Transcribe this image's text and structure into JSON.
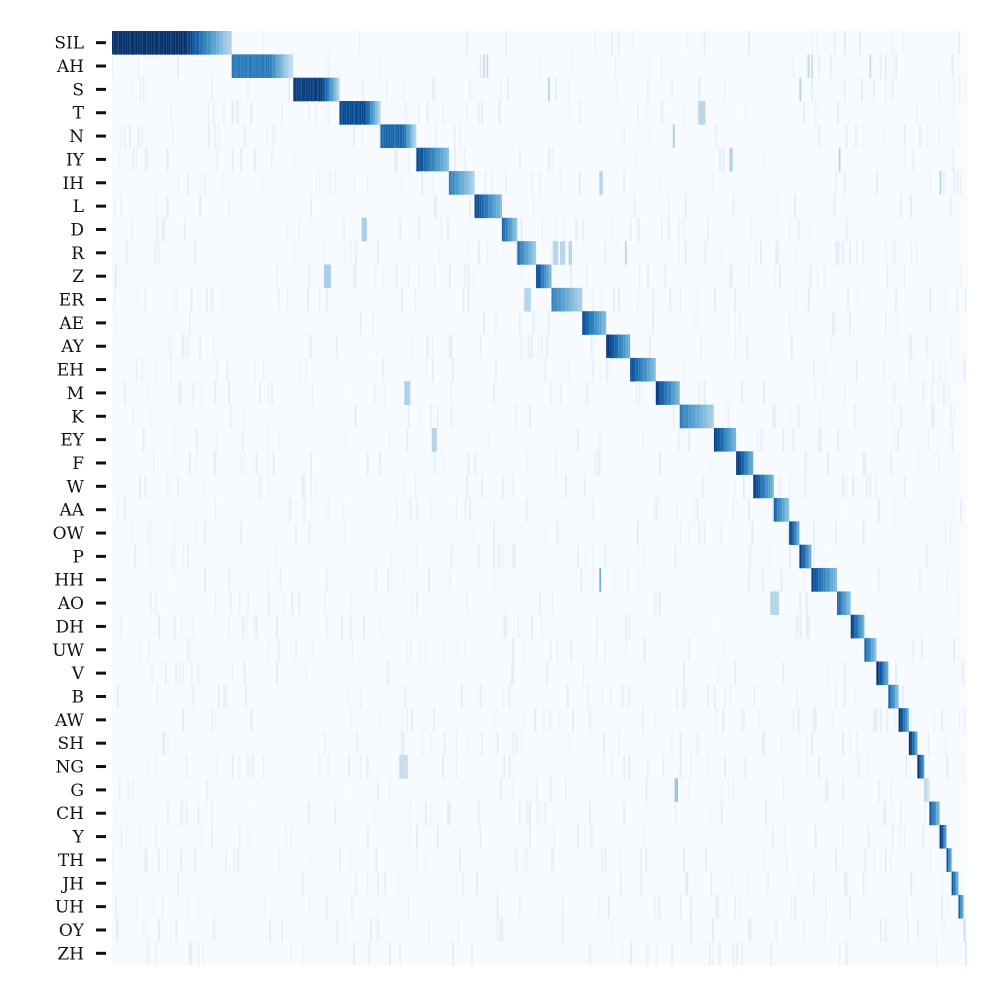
{
  "chart_data": {
    "type": "heatmap",
    "title": "",
    "xlabel": "",
    "ylabel": "",
    "colormap": "Blues",
    "colors": {
      "low": "#f7fbff",
      "mid": "#6baed6",
      "high": "#08306b"
    },
    "grid": false,
    "legend": "none",
    "x_tick_labels": [],
    "rows": [
      "SIL",
      "AH",
      "S",
      "T",
      "N",
      "IY",
      "IH",
      "L",
      "D",
      "R",
      "Z",
      "ER",
      "AE",
      "AY",
      "EH",
      "M",
      "K",
      "EY",
      "F",
      "W",
      "AA",
      "OW",
      "P",
      "HH",
      "AO",
      "DH",
      "UW",
      "V",
      "B",
      "AW",
      "SH",
      "NG",
      "G",
      "CH",
      "Y",
      "TH",
      "JH",
      "UH",
      "OY",
      "ZH"
    ],
    "n_columns": 500,
    "x_range": [
      0,
      500
    ],
    "diagonal_blocks": [
      {
        "row": "SIL",
        "start": 0,
        "end": 70,
        "peak": 1.0
      },
      {
        "row": "AH",
        "start": 70,
        "end": 106,
        "peak": 0.72
      },
      {
        "row": "S",
        "start": 106,
        "end": 133,
        "peak": 0.95
      },
      {
        "row": "T",
        "start": 133,
        "end": 157,
        "peak": 0.9
      },
      {
        "row": "N",
        "start": 157,
        "end": 178,
        "peak": 0.8
      },
      {
        "row": "IY",
        "start": 178,
        "end": 197,
        "peak": 0.92
      },
      {
        "row": "IH",
        "start": 197,
        "end": 212,
        "peak": 0.7
      },
      {
        "row": "L",
        "start": 212,
        "end": 228,
        "peak": 0.92
      },
      {
        "row": "D",
        "start": 228,
        "end": 237,
        "peak": 0.8
      },
      {
        "row": "R",
        "start": 237,
        "end": 248,
        "peak": 0.75
      },
      {
        "row": "Z",
        "start": 248,
        "end": 257,
        "peak": 0.9
      },
      {
        "row": "ER",
        "start": 257,
        "end": 275,
        "peak": 0.7
      },
      {
        "row": "AE",
        "start": 275,
        "end": 289,
        "peak": 0.9
      },
      {
        "row": "AY",
        "start": 289,
        "end": 303,
        "peak": 1.0
      },
      {
        "row": "EH",
        "start": 303,
        "end": 318,
        "peak": 0.9
      },
      {
        "row": "M",
        "start": 318,
        "end": 332,
        "peak": 0.95
      },
      {
        "row": "K",
        "start": 332,
        "end": 352,
        "peak": 0.72
      },
      {
        "row": "EY",
        "start": 352,
        "end": 365,
        "peak": 0.95
      },
      {
        "row": "F",
        "start": 365,
        "end": 375,
        "peak": 1.0
      },
      {
        "row": "W",
        "start": 375,
        "end": 387,
        "peak": 0.95
      },
      {
        "row": "AA",
        "start": 387,
        "end": 396,
        "peak": 0.8
      },
      {
        "row": "OW",
        "start": 396,
        "end": 402,
        "peak": 0.95
      },
      {
        "row": "P",
        "start": 402,
        "end": 409,
        "peak": 0.95
      },
      {
        "row": "HH",
        "start": 409,
        "end": 424,
        "peak": 0.92
      },
      {
        "row": "AO",
        "start": 424,
        "end": 432,
        "peak": 0.8
      },
      {
        "row": "DH",
        "start": 432,
        "end": 440,
        "peak": 0.95
      },
      {
        "row": "UW",
        "start": 440,
        "end": 447,
        "peak": 0.8
      },
      {
        "row": "V",
        "start": 447,
        "end": 454,
        "peak": 1.0
      },
      {
        "row": "B",
        "start": 454,
        "end": 460,
        "peak": 0.8
      },
      {
        "row": "AW",
        "start": 460,
        "end": 466,
        "peak": 1.0
      },
      {
        "row": "SH",
        "start": 466,
        "end": 471,
        "peak": 1.0
      },
      {
        "row": "NG",
        "start": 471,
        "end": 475,
        "peak": 1.0
      },
      {
        "row": "G",
        "start": 475,
        "end": 478,
        "peak": 0.3
      },
      {
        "row": "CH",
        "start": 478,
        "end": 484,
        "peak": 0.85
      },
      {
        "row": "Y",
        "start": 484,
        "end": 488,
        "peak": 1.0
      },
      {
        "row": "TH",
        "start": 488,
        "end": 491,
        "peak": 0.85
      },
      {
        "row": "JH",
        "start": 491,
        "end": 495,
        "peak": 0.85
      },
      {
        "row": "UH",
        "start": 495,
        "end": 498,
        "peak": 0.8
      },
      {
        "row": "OY",
        "start": 498,
        "end": 499,
        "peak": 0.25
      },
      {
        "row": "ZH",
        "start": 499,
        "end": 500,
        "peak": 0.1
      }
    ],
    "off_diagonal_marks": [
      {
        "row": "AH",
        "columns": [
          217,
          219,
          407,
          409,
          443
        ],
        "value": 0.25
      },
      {
        "row": "S",
        "columns": [
          255,
          402
        ],
        "value": 0.3
      },
      {
        "row": "T",
        "columns": [
          343,
          344,
          345,
          346
        ],
        "value": 0.3
      },
      {
        "row": "N",
        "columns": [
          328
        ],
        "value": 0.35
      },
      {
        "row": "IY",
        "columns": [
          361,
          362,
          425
        ],
        "value": 0.3
      },
      {
        "row": "IH",
        "columns": [
          285,
          286,
          484
        ],
        "value": 0.3
      },
      {
        "row": "D",
        "columns": [
          146,
          147,
          148
        ],
        "value": 0.35
      },
      {
        "row": "R",
        "columns": [
          258,
          259,
          260,
          262,
          263,
          264,
          267,
          268,
          300
        ],
        "value": 0.3
      },
      {
        "row": "Z",
        "columns": [
          124,
          125,
          126,
          127
        ],
        "value": 0.35
      },
      {
        "row": "ER",
        "columns": [
          241,
          242,
          243,
          244
        ],
        "value": 0.3
      },
      {
        "row": "M",
        "columns": [
          171,
          172,
          173
        ],
        "value": 0.35
      },
      {
        "row": "EY",
        "columns": [
          187,
          188,
          189
        ],
        "value": 0.3
      },
      {
        "row": "HH",
        "columns": [
          285
        ],
        "value": 0.5
      },
      {
        "row": "AO",
        "columns": [
          385,
          386,
          387,
          388,
          389
        ],
        "value": 0.3
      },
      {
        "row": "G",
        "columns": [
          329,
          330
        ],
        "value": 0.4
      },
      {
        "row": "NG",
        "columns": [
          168,
          169,
          170,
          171,
          172
        ],
        "value": 0.25
      }
    ]
  }
}
